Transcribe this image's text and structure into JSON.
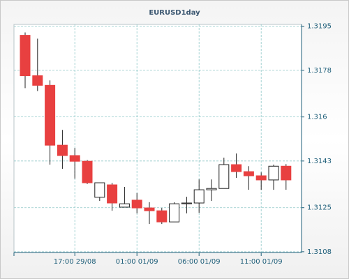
{
  "chart_data": {
    "type": "candlestick",
    "title": "EURUSD1day",
    "categories": [
      null,
      null,
      null,
      null,
      "17:00 29/08",
      null,
      null,
      null,
      null,
      "01:00 01/09",
      null,
      null,
      null,
      null,
      "06:00 01/09",
      null,
      null,
      null,
      null,
      "11:00 01/09",
      null,
      null
    ],
    "open": [
      1.31915,
      1.31759,
      1.31722,
      1.31491,
      1.31451,
      1.31429,
      1.3129,
      1.31338,
      1.31252,
      1.31279,
      1.31249,
      1.31238,
      1.31195,
      1.31265,
      1.31268,
      1.31319,
      1.31324,
      1.31416,
      1.31389,
      1.31373,
      1.31357,
      1.3141
    ],
    "high": [
      1.31926,
      1.31902,
      1.31741,
      1.3155,
      1.3148,
      1.31434,
      1.31346,
      1.31346,
      1.3133,
      1.31306,
      1.31271,
      1.31249,
      1.31271,
      1.31292,
      1.31359,
      1.31359,
      1.31443,
      1.31459,
      1.3141,
      1.31386,
      1.31416,
      1.31418
    ],
    "low": [
      1.31711,
      1.317,
      1.31416,
      1.314,
      1.31362,
      1.31341,
      1.31276,
      1.31238,
      1.31252,
      1.31228,
      1.31187,
      1.31187,
      1.31195,
      1.31228,
      1.3123,
      1.31276,
      1.31324,
      1.31365,
      1.31319,
      1.31319,
      1.31319,
      1.31319
    ],
    "close": [
      1.31759,
      1.31722,
      1.31491,
      1.31451,
      1.31429,
      1.31346,
      1.31346,
      1.31268,
      1.31265,
      1.31249,
      1.31238,
      1.31195,
      1.31265,
      1.31268,
      1.31319,
      1.31324,
      1.31416,
      1.31389,
      1.31373,
      1.31357,
      1.3141,
      1.31357
    ],
    "up_color": "#ffffff",
    "down_color": "#e84040",
    "ylim": [
      1.31077,
      1.31957
    ],
    "yticks": [
      1.3108,
      1.3125,
      1.3143,
      1.316,
      {
        "value": 1.3178,
        "label": "1.3178"
      },
      1.3195
    ],
    "grid": true
  }
}
